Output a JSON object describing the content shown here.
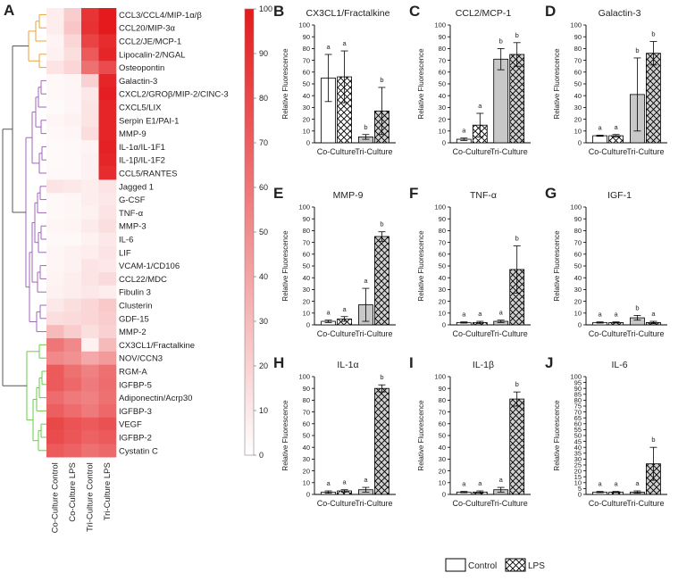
{
  "chart_data": {
    "heatmap": {
      "type": "heatmap",
      "panel_label": "A",
      "columns": [
        "Co-Culture Control",
        "Co-Culture LPS",
        "Tri-Culture Control",
        "Tri-Culture LPS"
      ],
      "rows": [
        {
          "label": "CCL3/CCL4/MIP-1α/β",
          "values": [
            8,
            22,
            88,
            100
          ],
          "cluster": "orange"
        },
        {
          "label": "CCL20/MIP-3α",
          "values": [
            8,
            25,
            90,
            100
          ],
          "cluster": "orange"
        },
        {
          "label": "CCL2/JE/MCP-1",
          "values": [
            5,
            18,
            82,
            92
          ],
          "cluster": "orange"
        },
        {
          "label": "Lipocalin-2/NGAL",
          "values": [
            6,
            14,
            72,
            95
          ],
          "cluster": "orange"
        },
        {
          "label": "Osteopontin",
          "values": [
            12,
            18,
            62,
            78
          ],
          "cluster": "orange"
        },
        {
          "label": "Galactin-3",
          "values": [
            3,
            4,
            20,
            95
          ],
          "cluster": "purple"
        },
        {
          "label": "CXCL2/GROβ/MIP-2/CINC-3",
          "values": [
            3,
            4,
            10,
            98
          ],
          "cluster": "purple"
        },
        {
          "label": "CXCL5/LIX",
          "values": [
            2,
            4,
            12,
            95
          ],
          "cluster": "purple"
        },
        {
          "label": "Serpin E1/PAI-1",
          "values": [
            4,
            6,
            12,
            95
          ],
          "cluster": "purple"
        },
        {
          "label": "MMP-9",
          "values": [
            3,
            4,
            15,
            95
          ],
          "cluster": "purple"
        },
        {
          "label": "IL-1α/IL-1F1",
          "values": [
            2,
            3,
            5,
            97
          ],
          "cluster": "purple"
        },
        {
          "label": "IL-1β/IL-1F2",
          "values": [
            2,
            3,
            6,
            95
          ],
          "cluster": "purple"
        },
        {
          "label": "CCL5/RANTES",
          "values": [
            3,
            3,
            6,
            92
          ],
          "cluster": "purple"
        },
        {
          "label": "Jagged 1",
          "values": [
            12,
            10,
            8,
            12
          ],
          "cluster": "purple"
        },
        {
          "label": "G-CSF",
          "values": [
            3,
            4,
            8,
            10
          ],
          "cluster": "purple"
        },
        {
          "label": "TNF-α",
          "values": [
            3,
            4,
            6,
            12
          ],
          "cluster": "purple"
        },
        {
          "label": "MMP-3",
          "values": [
            4,
            5,
            9,
            14
          ],
          "cluster": "purple"
        },
        {
          "label": "IL-6",
          "values": [
            3,
            3,
            6,
            10
          ],
          "cluster": "purple"
        },
        {
          "label": "LIF",
          "values": [
            4,
            6,
            8,
            12
          ],
          "cluster": "purple"
        },
        {
          "label": "VCAM-1/CD106",
          "values": [
            4,
            6,
            12,
            10
          ],
          "cluster": "purple"
        },
        {
          "label": "CCL22/MDC",
          "values": [
            5,
            8,
            12,
            16
          ],
          "cluster": "purple"
        },
        {
          "label": "Fibulin 3",
          "values": [
            6,
            8,
            10,
            8
          ],
          "cluster": "purple"
        },
        {
          "label": "Clusterin",
          "values": [
            10,
            14,
            18,
            24
          ],
          "cluster": "purple"
        },
        {
          "label": "GDF-15",
          "values": [
            14,
            16,
            18,
            22
          ],
          "cluster": "purple"
        },
        {
          "label": "MMP-2",
          "values": [
            30,
            22,
            14,
            20
          ],
          "cluster": "purple"
        },
        {
          "label": "CX3CL1/Fractalkine",
          "values": [
            60,
            52,
            6,
            30
          ],
          "cluster": "green"
        },
        {
          "label": "NOV/CCN3",
          "values": [
            52,
            48,
            38,
            44
          ],
          "cluster": "green"
        },
        {
          "label": "RGM-A",
          "values": [
            72,
            62,
            55,
            62
          ],
          "cluster": "green"
        },
        {
          "label": "IGFBP-5",
          "values": [
            72,
            66,
            58,
            64
          ],
          "cluster": "green"
        },
        {
          "label": "Adiponectin/Acrp30",
          "values": [
            64,
            58,
            55,
            62
          ],
          "cluster": "green"
        },
        {
          "label": "IGFBP-3",
          "values": [
            70,
            64,
            58,
            66
          ],
          "cluster": "green"
        },
        {
          "label": "VEGF",
          "values": [
            80,
            75,
            72,
            76
          ],
          "cluster": "green"
        },
        {
          "label": "IGFBP-2",
          "values": [
            78,
            74,
            68,
            72
          ],
          "cluster": "green"
        },
        {
          "label": "Cystatin C",
          "values": [
            72,
            68,
            62,
            66
          ],
          "cluster": "green"
        }
      ],
      "colorbar": {
        "min": 0,
        "max": 100,
        "ticks": [
          0,
          10,
          20,
          30,
          40,
          50,
          60,
          70,
          80,
          90,
          100
        ],
        "color_low": "#ffffff",
        "color_high": "#e41a1c"
      },
      "cluster_colors": {
        "orange": "#e8a33a",
        "purple": "#a066b8",
        "green": "#66cc44",
        "root": "#555555"
      }
    },
    "bar_panels": [
      {
        "letter": "B",
        "title": "CX3CL1/Fractalkine",
        "ylabel": "Relative Fluorescence",
        "ymax": 100,
        "ticks": [
          0,
          10,
          20,
          30,
          40,
          50,
          60,
          70,
          80,
          90,
          100
        ],
        "categories": [
          "Co-Culture",
          "Tri-Culture"
        ],
        "series": [
          {
            "name": "Control",
            "values": [
              55,
              5
            ],
            "errors": [
              20,
              2
            ],
            "letters": [
              "a",
              "b"
            ]
          },
          {
            "name": "LPS",
            "values": [
              56,
              27
            ],
            "errors": [
              22,
              20
            ],
            "letters": [
              "a",
              "b"
            ]
          }
        ]
      },
      {
        "letter": "C",
        "title": "CCL2/MCP-1",
        "ylabel": "Relative Fluorescence",
        "ymax": 100,
        "ticks": [
          0,
          10,
          20,
          30,
          40,
          50,
          60,
          70,
          80,
          90,
          100
        ],
        "categories": [
          "Co-Culture",
          "Tri-Culture"
        ],
        "series": [
          {
            "name": "Control",
            "values": [
              3,
              71
            ],
            "errors": [
              1,
              9
            ],
            "letters": [
              "a",
              "b"
            ]
          },
          {
            "name": "LPS",
            "values": [
              15,
              75
            ],
            "errors": [
              10,
              10
            ],
            "letters": [
              "a",
              "b"
            ]
          }
        ]
      },
      {
        "letter": "D",
        "title": "Galactin-3",
        "ylabel": "Relative Fluorescence",
        "ymax": 100,
        "ticks": [
          0,
          10,
          20,
          30,
          40,
          50,
          60,
          70,
          80,
          90,
          100
        ],
        "categories": [
          "Co-Culture",
          "Tri-Culture"
        ],
        "series": [
          {
            "name": "Control",
            "values": [
              6,
              41
            ],
            "errors": [
              0.5,
              31
            ],
            "letters": [
              "a",
              "b"
            ]
          },
          {
            "name": "LPS",
            "values": [
              6,
              76
            ],
            "errors": [
              1,
              10
            ],
            "letters": [
              "a",
              "b"
            ]
          }
        ]
      },
      {
        "letter": "E",
        "title": "MMP-9",
        "ylabel": "Relative Fluorescence",
        "ymax": 100,
        "ticks": [
          0,
          10,
          20,
          30,
          40,
          50,
          60,
          70,
          80,
          90,
          100
        ],
        "categories": [
          "Co-Culture",
          "Tri-Culture"
        ],
        "series": [
          {
            "name": "Control",
            "values": [
              3,
              17
            ],
            "errors": [
              1,
              14
            ],
            "letters": [
              "a",
              "a"
            ]
          },
          {
            "name": "LPS",
            "values": [
              5,
              75
            ],
            "errors": [
              2,
              4
            ],
            "letters": [
              "a",
              "b"
            ]
          }
        ]
      },
      {
        "letter": "F",
        "title": "TNF-α",
        "ylabel": "Relative Fluorescence",
        "ymax": 100,
        "ticks": [
          0,
          10,
          20,
          30,
          40,
          50,
          60,
          70,
          80,
          90,
          100
        ],
        "categories": [
          "Co-Culture",
          "Tri-Culture"
        ],
        "series": [
          {
            "name": "Control",
            "values": [
              2,
              3
            ],
            "errors": [
              0.5,
              1
            ],
            "letters": [
              "a",
              "a"
            ]
          },
          {
            "name": "LPS",
            "values": [
              2,
              47
            ],
            "errors": [
              1,
              20
            ],
            "letters": [
              "a",
              "b"
            ]
          }
        ]
      },
      {
        "letter": "G",
        "title": "IGF-1",
        "ylabel": "Relative Fluorescence",
        "ymax": 100,
        "ticks": [
          0,
          10,
          20,
          30,
          40,
          50,
          60,
          70,
          80,
          90,
          100
        ],
        "categories": [
          "Co-Culture",
          "Tri-Culture"
        ],
        "series": [
          {
            "name": "Control",
            "values": [
              2,
              6
            ],
            "errors": [
              0.5,
              2
            ],
            "letters": [
              "a",
              "b"
            ]
          },
          {
            "name": "LPS",
            "values": [
              2,
              2
            ],
            "errors": [
              0.5,
              1
            ],
            "letters": [
              "a",
              "a"
            ]
          }
        ]
      },
      {
        "letter": "H",
        "title": "IL-1α",
        "ylabel": "Relative Fluorescence",
        "ymax": 100,
        "ticks": [
          0,
          10,
          20,
          30,
          40,
          50,
          60,
          70,
          80,
          90,
          100
        ],
        "categories": [
          "Co-Culture",
          "Tri-Culture"
        ],
        "series": [
          {
            "name": "Control",
            "values": [
              2,
              4
            ],
            "errors": [
              1,
              2
            ],
            "letters": [
              "a",
              "a"
            ]
          },
          {
            "name": "LPS",
            "values": [
              3,
              90
            ],
            "errors": [
              1,
              3
            ],
            "letters": [
              "a",
              "b"
            ]
          }
        ]
      },
      {
        "letter": "I",
        "title": "IL-1β",
        "ylabel": "Relative Fluorescence",
        "ymax": 100,
        "ticks": [
          0,
          10,
          20,
          30,
          40,
          50,
          60,
          70,
          80,
          90,
          100
        ],
        "categories": [
          "Co-Culture",
          "Tri-Culture"
        ],
        "series": [
          {
            "name": "Control",
            "values": [
              2,
              4
            ],
            "errors": [
              0.5,
              2
            ],
            "letters": [
              "a",
              "a"
            ]
          },
          {
            "name": "LPS",
            "values": [
              2,
              81
            ],
            "errors": [
              1,
              6
            ],
            "letters": [
              "a",
              "b"
            ]
          }
        ]
      },
      {
        "letter": "J",
        "title": "IL-6",
        "ylabel": "Relative Fluorescence",
        "ymax": 100,
        "ticks": [
          0,
          5,
          10,
          15,
          20,
          25,
          30,
          35,
          40,
          45,
          50,
          55,
          60,
          65,
          70,
          75,
          80,
          85,
          90,
          95,
          100
        ],
        "categories": [
          "Co-Culture",
          "Tri-Culture"
        ],
        "series": [
          {
            "name": "Control",
            "values": [
              2,
              2
            ],
            "errors": [
              0.5,
              1
            ],
            "letters": [
              "a",
              "a"
            ]
          },
          {
            "name": "LPS",
            "values": [
              2,
              26
            ],
            "errors": [
              0.5,
              14
            ],
            "letters": [
              "a",
              "b"
            ]
          }
        ]
      }
    ],
    "legend": [
      {
        "name": "Control",
        "fill": "#ffffff"
      },
      {
        "name": "LPS",
        "fill": "hatch"
      }
    ],
    "colors": {
      "control_co": "#ffffff",
      "control_tri": "#c8c8c8",
      "lps_fill": "#d0d0d0",
      "hatch": "#000000",
      "axis": "#000000"
    }
  }
}
